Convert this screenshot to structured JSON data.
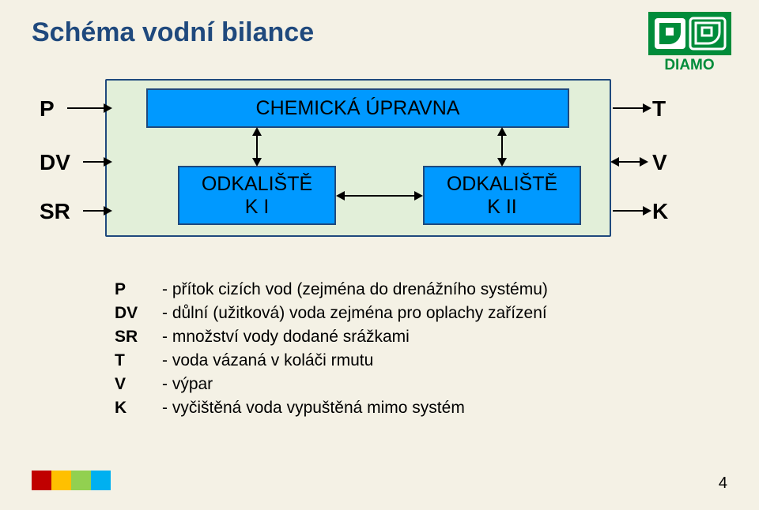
{
  "background_color": "#f4f1e5",
  "title": {
    "text": "Schéma vodní bilance",
    "color": "#1f497d",
    "fontsize": 34
  },
  "logo": {
    "text": "DIAMO",
    "green": "#008c3a",
    "letter_bg": "#ffffff"
  },
  "labels": {
    "P": "P",
    "DV": "DV",
    "SR": "SR",
    "T": "T",
    "V": "V",
    "K": "K",
    "fontsize": 28
  },
  "diagram": {
    "bg_color": "#e2efd9",
    "bg_border": "#1f497d",
    "box_fill": "#0099ff",
    "box_border": "#1f497d",
    "box_fontsize": 25,
    "chem_label": "CHEMICKÁ ÚPRAVNA",
    "odk1_label": "ODKALIŠTĚ\nK I",
    "odk2_label": "ODKALIŠTĚ\nK II",
    "arrow_color": "#000000",
    "arrow_thickness": 2
  },
  "legend": {
    "fontsize": 21,
    "rows": [
      {
        "key": "P",
        "val": "- přítok cizích vod (zejména do drenážního systému)"
      },
      {
        "key": "DV",
        "val": "- důlní (užitková) voda zejména pro oplachy zařízení"
      },
      {
        "key": "SR",
        "val": "- množství vody dodané srážkami"
      },
      {
        "key": "T",
        "val": "- voda vázaná v koláči rmutu"
      },
      {
        "key": "V",
        "val": "- výpar"
      },
      {
        "key": "K",
        "val": "- vyčištěná voda vypuštěná mimo systém"
      }
    ]
  },
  "corner_colors": [
    "#c00000",
    "#ffc000",
    "#92d050",
    "#00b0f0"
  ],
  "page_number": "4",
  "page_number_fontsize": 20
}
